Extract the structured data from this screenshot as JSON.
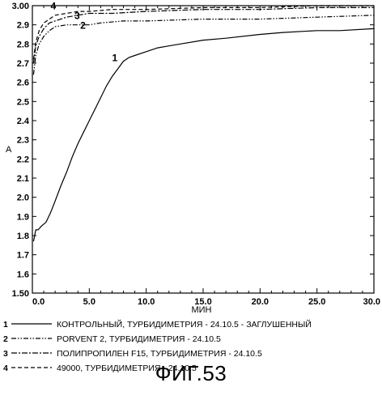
{
  "caption": "ФИГ.53",
  "chart_data": {
    "type": "line",
    "xlabel": "МИН",
    "ylabel": "A",
    "xlim": [
      0,
      30
    ],
    "ylim": [
      1.5,
      3.0
    ],
    "x_ticks": [
      0,
      5,
      10,
      15,
      20,
      25,
      30
    ],
    "x_tick_labels": [
      "0.0",
      "5.0",
      "10.0",
      "15.0",
      "20.0",
      "25.0",
      "30.0"
    ],
    "y_ticks": [
      1.5,
      1.6,
      1.7,
      1.8,
      1.9,
      2.0,
      2.1,
      2.2,
      2.3,
      2.4,
      2.5,
      2.6,
      2.7,
      2.8,
      2.9,
      3.0
    ],
    "y_tick_labels": [
      "1.50",
      "1.6",
      "1.7",
      "1.8",
      "1.9",
      "2.0",
      "2.1",
      "2.2",
      "2.3",
      "2.4",
      "2.5",
      "2.6",
      "2.7",
      "2.8",
      "2.9",
      "3.00"
    ],
    "grid": false,
    "legend_position": "bottom",
    "series": [
      {
        "id": "1",
        "name": "КОНТРОЛЬНЫЙ, ТУРБИДИМЕТРИЯ - 24.10.5 - ЗАГЛУШЕННЫЙ",
        "style": "solid",
        "x": [
          0.1,
          0.3,
          0.5,
          0.8,
          1.2,
          1.6,
          2.0,
          2.5,
          3.0,
          3.5,
          4.0,
          4.5,
          5.0,
          5.5,
          6.0,
          6.5,
          7.0,
          7.5,
          8.0,
          8.5,
          9.0,
          10.0,
          11.0,
          12.0,
          13.0,
          15.0,
          17.0,
          20.0,
          22.0,
          25.0,
          27.0,
          30.0
        ],
        "y": [
          1.77,
          1.83,
          1.83,
          1.85,
          1.87,
          1.92,
          1.98,
          2.06,
          2.13,
          2.21,
          2.28,
          2.34,
          2.4,
          2.46,
          2.52,
          2.58,
          2.63,
          2.67,
          2.71,
          2.73,
          2.74,
          2.76,
          2.78,
          2.79,
          2.8,
          2.82,
          2.83,
          2.85,
          2.86,
          2.87,
          2.87,
          2.88
        ]
      },
      {
        "id": "2",
        "name": "PORVENT 2, ТУРБИДИМЕТРИЯ - 24.10.5",
        "style": "dash-dot-dot",
        "x": [
          0.1,
          0.3,
          0.6,
          1.0,
          1.5,
          2.0,
          3.0,
          4.0,
          5.0,
          6.0,
          8.0,
          10.0,
          15.0,
          20.0,
          25.0,
          30.0
        ],
        "y": [
          2.64,
          2.74,
          2.8,
          2.84,
          2.87,
          2.89,
          2.9,
          2.9,
          2.9,
          2.91,
          2.92,
          2.92,
          2.93,
          2.93,
          2.94,
          2.95
        ]
      },
      {
        "id": "3",
        "name": "ПОЛИПРОПИЛЕН F15, ТУРБИДИМЕТРИЯ - 24.10.5",
        "style": "dash-dot",
        "x": [
          0.1,
          0.3,
          0.6,
          1.0,
          1.5,
          2.0,
          3.0,
          4.0,
          5.0,
          7.0,
          10.0,
          15.0,
          20.0,
          25.0,
          30.0
        ],
        "y": [
          2.7,
          2.79,
          2.84,
          2.88,
          2.91,
          2.92,
          2.94,
          2.95,
          2.96,
          2.96,
          2.97,
          2.98,
          2.98,
          2.99,
          2.99
        ]
      },
      {
        "id": "4",
        "name": "49000, ТУРБИДИМЕТРИЯ - 24.10.5",
        "style": "dashed",
        "x": [
          0.1,
          0.3,
          0.6,
          1.0,
          1.5,
          2.0,
          3.0,
          4.0,
          5.0,
          7.0,
          10.0,
          15.0,
          20.0,
          25.0,
          30.0
        ],
        "y": [
          2.72,
          2.81,
          2.87,
          2.91,
          2.93,
          2.95,
          2.96,
          2.97,
          2.97,
          2.98,
          2.98,
          2.99,
          2.99,
          3.0,
          3.0
        ]
      }
    ],
    "curve_labels": [
      {
        "text": "1",
        "x": 7.0,
        "y": 2.71
      },
      {
        "text": "2",
        "x": 4.2,
        "y": 2.88
      },
      {
        "text": "3",
        "x": 3.7,
        "y": 2.93
      },
      {
        "text": "4",
        "x": 1.6,
        "y": 2.98
      }
    ]
  }
}
